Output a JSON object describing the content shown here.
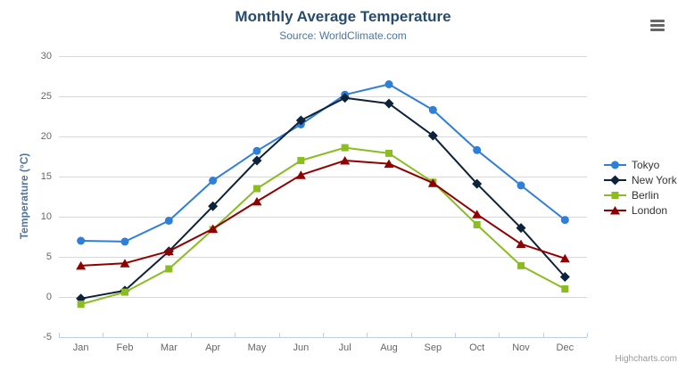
{
  "chart_data": {
    "type": "line",
    "title": "Monthly Average Temperature",
    "subtitle": "Source: WorldClimate.com",
    "xlabel": "",
    "ylabel": "Temperature (°C)",
    "categories": [
      "Jan",
      "Feb",
      "Mar",
      "Apr",
      "May",
      "Jun",
      "Jul",
      "Aug",
      "Sep",
      "Oct",
      "Nov",
      "Dec"
    ],
    "series": [
      {
        "name": "Tokyo",
        "color": "#2f7ed8",
        "marker": "circle",
        "values": [
          7.0,
          6.9,
          9.5,
          14.5,
          18.2,
          21.5,
          25.2,
          26.5,
          23.3,
          18.3,
          13.9,
          9.6
        ]
      },
      {
        "name": "New York",
        "color": "#0d233a",
        "marker": "diamond",
        "values": [
          -0.2,
          0.8,
          5.7,
          11.3,
          17.0,
          22.0,
          24.8,
          24.1,
          20.1,
          14.1,
          8.6,
          2.5
        ]
      },
      {
        "name": "Berlin",
        "color": "#8bbc21",
        "marker": "square",
        "values": [
          -0.9,
          0.6,
          3.5,
          8.4,
          13.5,
          17.0,
          18.6,
          17.9,
          14.3,
          9.0,
          3.9,
          1.0
        ]
      },
      {
        "name": "London",
        "color": "#910000",
        "marker": "triangle",
        "values": [
          3.9,
          4.2,
          5.7,
          8.5,
          11.9,
          15.2,
          17.0,
          16.6,
          14.2,
          10.3,
          6.6,
          4.8
        ]
      }
    ],
    "ylim": [
      -5,
      30
    ],
    "yticks": [
      30,
      25,
      20,
      15,
      10,
      5,
      0,
      -5
    ],
    "grid": true,
    "legend_position": "right",
    "colors": {
      "title": "#274b6d",
      "subtitle": "#4d759e",
      "axis_title": "#4d759e",
      "tick_label": "#666666",
      "grid_line": "#d8d8d8",
      "axis_line": "#c0d0e0"
    }
  },
  "export_menu": {
    "icon": "hamburger-icon"
  },
  "credits": {
    "label": "Highcharts.com"
  }
}
